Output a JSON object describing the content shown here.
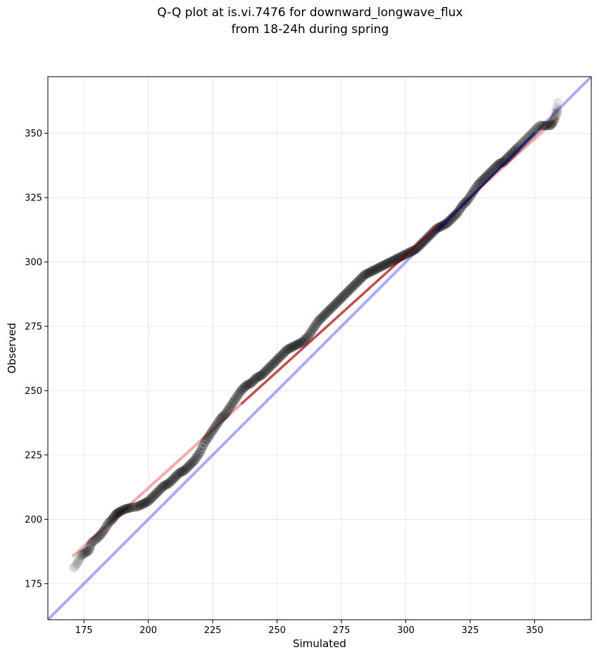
{
  "chart_data": {
    "type": "scatter",
    "title": "Q-Q plot at is.vi.7476 for downward_longwave_flux\nfrom 18-24h during spring",
    "xlabel": "Simulated",
    "ylabel": "Observed",
    "xlim": [
      161,
      372
    ],
    "ylim": [
      161,
      372
    ],
    "xticks": [
      175,
      200,
      225,
      250,
      275,
      300,
      325,
      350
    ],
    "yticks": [
      175,
      200,
      225,
      250,
      275,
      300,
      325,
      350
    ],
    "grid": true,
    "colors": {
      "points": "#000000",
      "fit_line": "#f08080",
      "identity_line": "#8080f0",
      "fit_overlay_dark": "#8b0000",
      "fit_overlay_blue": "#00008b"
    },
    "identity_line": {
      "x": [
        161,
        372
      ],
      "y": [
        161,
        372
      ]
    },
    "fit_line": {
      "x": [
        170.5,
        359
      ],
      "y": [
        185.5,
        356
      ]
    },
    "quantile_points": {
      "x": [
        171,
        172.5,
        174,
        175.5,
        177,
        178,
        180,
        181.5,
        183,
        184.5,
        186,
        187.5,
        189,
        191,
        193,
        196,
        198,
        200,
        202,
        204,
        206,
        208,
        210,
        212,
        214,
        216,
        218,
        220,
        222,
        224,
        226,
        228,
        230,
        232,
        234,
        236,
        238,
        240,
        242,
        244,
        246,
        248,
        250,
        252,
        254,
        256,
        258,
        260,
        262,
        264,
        266,
        268,
        270,
        272,
        274,
        276,
        278,
        280,
        282,
        284,
        286,
        288,
        290,
        292,
        294,
        296,
        298,
        300,
        302,
        304,
        306,
        308,
        310,
        312,
        314,
        316,
        318,
        320,
        322,
        324,
        326,
        328,
        330,
        332,
        334,
        336,
        338,
        340,
        342,
        344,
        346,
        348,
        350,
        352,
        354,
        356,
        357,
        358,
        359
      ],
      "y": [
        181,
        183,
        186,
        187,
        188,
        191,
        192.5,
        194,
        196,
        198.5,
        200,
        202,
        203,
        204,
        204.5,
        205,
        206,
        207,
        209,
        211,
        213,
        214,
        216,
        218,
        219,
        221,
        223,
        226,
        230,
        233,
        236,
        239,
        241,
        244,
        247,
        250,
        252,
        253,
        255,
        256,
        258,
        260,
        262,
        264,
        266,
        267,
        268,
        269,
        271,
        274,
        277,
        279,
        281,
        283,
        285,
        287,
        289,
        291,
        293,
        295,
        296,
        297,
        298,
        299,
        300,
        301,
        302,
        303,
        304,
        305,
        307,
        309,
        311,
        313,
        314,
        315,
        317,
        319,
        322,
        324,
        327,
        330,
        332,
        334,
        336,
        338,
        339,
        341,
        343,
        345,
        347,
        349,
        351,
        353,
        353,
        353,
        354,
        356,
        359
      ]
    },
    "outlier_points": {
      "x": [
        358,
        358.5,
        359
      ],
      "y": [
        358,
        360,
        362
      ]
    }
  }
}
